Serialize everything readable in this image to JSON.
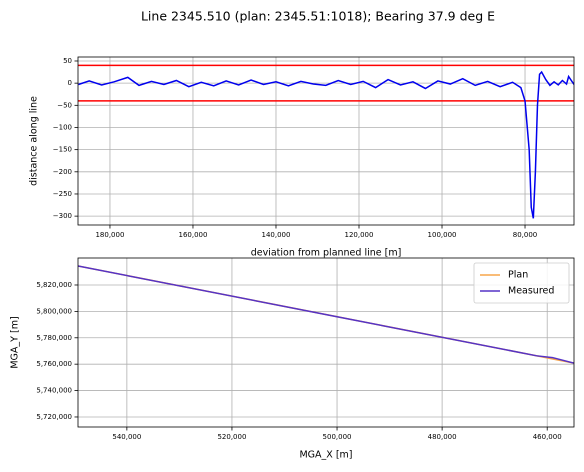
{
  "title": "Line 2345.510 (plan: 2345.51:1018); Bearing 37.9 deg E",
  "chart_data": [
    {
      "type": "line",
      "xlabel": "deviation from planned line [m]",
      "ylabel": "distance along line",
      "xlim": [
        187700,
        68200
      ],
      "ylim": [
        -320,
        59
      ],
      "xticks": [
        {
          "value": 180000,
          "label": "180,000"
        },
        {
          "value": 160000,
          "label": "160,000"
        },
        {
          "value": 140000,
          "label": "140,000"
        },
        {
          "value": 120000,
          "label": "120,000"
        },
        {
          "value": 100000,
          "label": "100,000"
        },
        {
          "value": 80000,
          "label": "80,000"
        }
      ],
      "yticks": [
        50,
        0,
        {
          "value": -50,
          "label": "−50"
        },
        {
          "value": -100,
          "label": "−100"
        },
        {
          "value": -150,
          "label": "−150"
        },
        {
          "value": -200,
          "label": "−200"
        },
        {
          "value": -250,
          "label": "−250"
        },
        {
          "value": -300,
          "label": "−300"
        }
      ],
      "grid": true,
      "hlines": {
        "color": "#ff0000",
        "values": [
          40,
          -40
        ]
      },
      "series": [
        {
          "color": "#0000ee",
          "x": [
            187600,
            185000,
            182000,
            179000,
            175700,
            173000,
            170000,
            167000,
            164000,
            161000,
            158000,
            155000,
            152000,
            149000,
            146000,
            143000,
            140000,
            137000,
            134000,
            131000,
            128000,
            125000,
            122000,
            119000,
            116000,
            113000,
            110000,
            107000,
            104000,
            101000,
            98000,
            95000,
            92000,
            89000,
            86000,
            83000,
            81000,
            80000,
            79000,
            78500,
            78000,
            77500,
            77000,
            76500,
            76000,
            75000,
            74000,
            73000,
            72000,
            71000,
            70000,
            69500,
            68200
          ],
          "values": [
            -3,
            5,
            -4,
            3,
            13,
            -5,
            4,
            -3,
            6,
            -8,
            2,
            -6,
            5,
            -4,
            7,
            -3,
            3,
            -6,
            4,
            -2,
            -5,
            6,
            -3,
            4,
            -10,
            8,
            -4,
            3,
            -12,
            5,
            -2,
            10,
            -5,
            4,
            -8,
            2,
            -10,
            -40,
            -150,
            -280,
            -305,
            -200,
            -50,
            20,
            25,
            8,
            -5,
            3,
            -4,
            6,
            -2,
            15,
            -3
          ]
        }
      ]
    },
    {
      "type": "line",
      "xlabel": "MGA_X [m]",
      "ylabel": "MGA_Y [m]",
      "xlim": [
        549300,
        454900
      ],
      "ylim": [
        5712400,
        5840450
      ],
      "xticks": [
        {
          "value": 540000,
          "label": "540,000"
        },
        {
          "value": 520000,
          "label": "520,000"
        },
        {
          "value": 500000,
          "label": "500,000"
        },
        {
          "value": 480000,
          "label": "480,000"
        },
        {
          "value": 460000,
          "label": "460,000"
        }
      ],
      "yticks": [
        {
          "value": 5820000,
          "label": "5,820,000"
        },
        {
          "value": 5800000,
          "label": "5,800,000"
        },
        {
          "value": 5780000,
          "label": "5,780,000"
        },
        {
          "value": 5760000,
          "label": "5,760,000"
        },
        {
          "value": 5740000,
          "label": "5,740,000"
        },
        {
          "value": 5720000,
          "label": "5,720,000"
        }
      ],
      "grid": true,
      "legend": "upper right",
      "series": [
        {
          "name": "Plan",
          "color": "#f7a54a",
          "x": [
            549300,
            454900
          ],
          "values": [
            5834400,
            5760800
          ]
        },
        {
          "name": "Measured",
          "color": "#5533c6",
          "x": [
            549300,
            500000,
            462000,
            459000,
            454900
          ],
          "values": [
            5834400,
            5795960,
            5766330,
            5765000,
            5760800
          ]
        }
      ]
    }
  ]
}
